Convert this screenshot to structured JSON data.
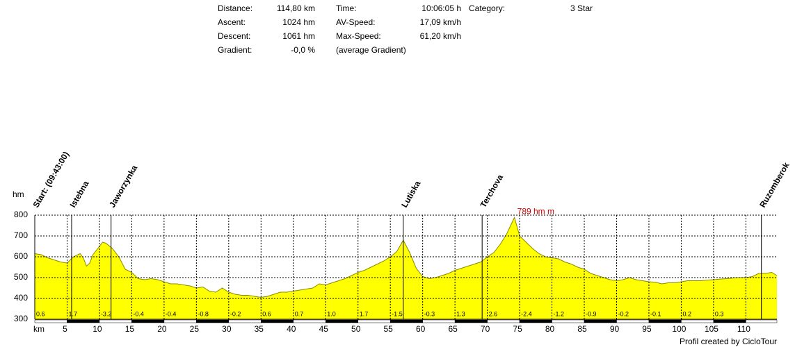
{
  "stats": {
    "columns": [
      [
        {
          "label": "Distance:",
          "value": "114,80 km"
        },
        {
          "label": "Ascent:",
          "value": "1024 hm"
        },
        {
          "label": "Descent:",
          "value": "1061 hm"
        },
        {
          "label": "Gradient:",
          "value": "-0,0 %"
        }
      ],
      [
        {
          "label": "Time:",
          "value": "10:06:05 h"
        },
        {
          "label": "AV-Speed:",
          "value": "17,09 km/h"
        },
        {
          "label": "Max-Speed:",
          "value": "61,20 km/h"
        },
        {
          "label": "(average Gradient)"
        }
      ],
      [
        {
          "label": "Category:",
          "value": "3 Star"
        }
      ]
    ]
  },
  "chart_data": {
    "type": "area",
    "color": "#ffff00",
    "x_label": "km",
    "y_label": "hm",
    "x": [
      0,
      1,
      2,
      3,
      4,
      5,
      5.5,
      6,
      7,
      7.5,
      8,
      8.5,
      9,
      10,
      10.5,
      11,
      12,
      13,
      14,
      15,
      16,
      17,
      18,
      19,
      20,
      21,
      22,
      23,
      24,
      25,
      26,
      27,
      28,
      29,
      30,
      31,
      32,
      33,
      34,
      35,
      36,
      37,
      38,
      39,
      40,
      41,
      42,
      43,
      44,
      45,
      46,
      47,
      48,
      49,
      50,
      51,
      52,
      53,
      54,
      55,
      56,
      57,
      58,
      59,
      60,
      61,
      62,
      63,
      64,
      65,
      66,
      67,
      68,
      69,
      70,
      71,
      72,
      73,
      74.2,
      75,
      76,
      77,
      78,
      79,
      80,
      81,
      82,
      83,
      84,
      85,
      86,
      87,
      88,
      89,
      90,
      91,
      92,
      93,
      94,
      95,
      96,
      97,
      98,
      99,
      100,
      101,
      102,
      103,
      104,
      105,
      106,
      107,
      108,
      109,
      110,
      111,
      112,
      113,
      114,
      114.8
    ],
    "values": [
      615,
      610,
      595,
      585,
      575,
      570,
      585,
      600,
      615,
      595,
      555,
      570,
      610,
      650,
      670,
      665,
      640,
      600,
      540,
      525,
      495,
      490,
      495,
      490,
      480,
      470,
      470,
      465,
      460,
      450,
      455,
      435,
      430,
      450,
      430,
      420,
      415,
      415,
      410,
      405,
      410,
      420,
      430,
      430,
      435,
      440,
      445,
      450,
      470,
      465,
      475,
      485,
      495,
      510,
      525,
      535,
      550,
      565,
      580,
      600,
      625,
      680,
      620,
      545,
      505,
      495,
      500,
      510,
      520,
      535,
      545,
      555,
      565,
      575,
      600,
      620,
      660,
      710,
      789,
      700,
      670,
      640,
      615,
      600,
      595,
      590,
      575,
      565,
      550,
      540,
      520,
      510,
      500,
      490,
      485,
      490,
      500,
      490,
      485,
      480,
      478,
      470,
      475,
      475,
      480,
      485,
      485,
      485,
      488,
      490,
      493,
      495,
      498,
      500,
      500,
      505,
      520,
      520,
      525,
      510
    ],
    "xlim": [
      0,
      114.8
    ],
    "ylim": [
      300,
      800
    ],
    "yticks": [
      300,
      400,
      500,
      600,
      700,
      800
    ],
    "xticks": [
      5,
      10,
      15,
      20,
      25,
      30,
      35,
      40,
      45,
      50,
      55,
      60,
      65,
      70,
      75,
      80,
      85,
      90,
      95,
      100,
      105,
      110
    ],
    "grid": true,
    "gradient_labels": [
      "0.6",
      "1.7",
      "-3.2",
      "-0.4",
      "-0.4",
      "-0.8",
      "-0.2",
      "0.6",
      "0.7",
      "1.0",
      "1.7",
      "-1.5",
      "-0.3",
      "1.3",
      "2.6",
      "-2.4",
      "-1.2",
      "-0.9",
      "-0.2",
      "-0.1",
      "0.2",
      "0.3"
    ],
    "waypoints": [
      {
        "label": "Start: (09:43:00)",
        "x": 0
      },
      {
        "label": "Istebna",
        "x": 5.7
      },
      {
        "label": "Jaworzynka",
        "x": 11.8
      },
      {
        "label": "Lutiska",
        "x": 57
      },
      {
        "label": "Terchova",
        "x": 69.2
      },
      {
        "label": "Ruzomberok",
        "x": 112.4
      }
    ],
    "annotation": "789 hm m",
    "footer": "Profil created by CicloTour"
  }
}
